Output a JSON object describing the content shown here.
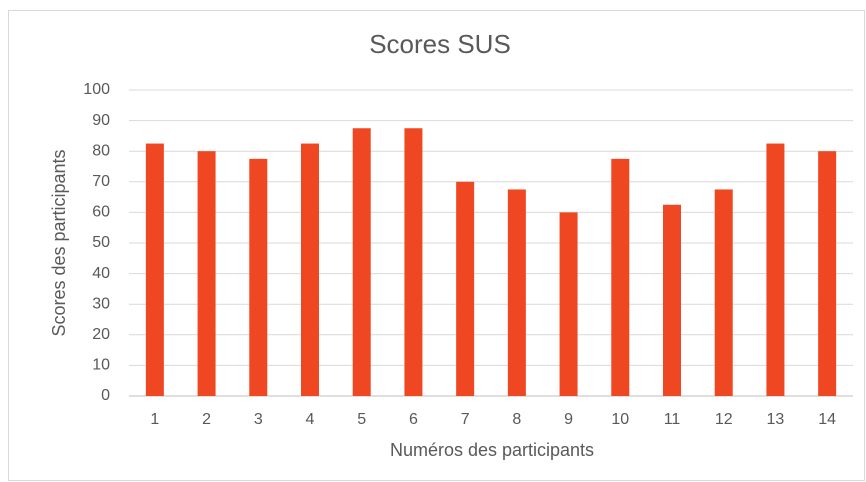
{
  "chart_data": {
    "type": "bar",
    "title": "Scores SUS",
    "x_label": "Numéros des participants",
    "y_label": "Scores des participants",
    "categories": [
      "1",
      "2",
      "3",
      "4",
      "5",
      "6",
      "7",
      "8",
      "9",
      "10",
      "11",
      "12",
      "13",
      "14"
    ],
    "values": [
      82.5,
      80,
      77.5,
      82.5,
      87.5,
      87.5,
      70,
      67.5,
      60,
      77.5,
      62.5,
      67.5,
      82.5,
      80
    ],
    "color": "#f04723",
    "ylim": [
      0,
      100
    ],
    "yticks": [
      0,
      10,
      20,
      30,
      40,
      50,
      60,
      70,
      80,
      90,
      100
    ],
    "grid": true
  }
}
